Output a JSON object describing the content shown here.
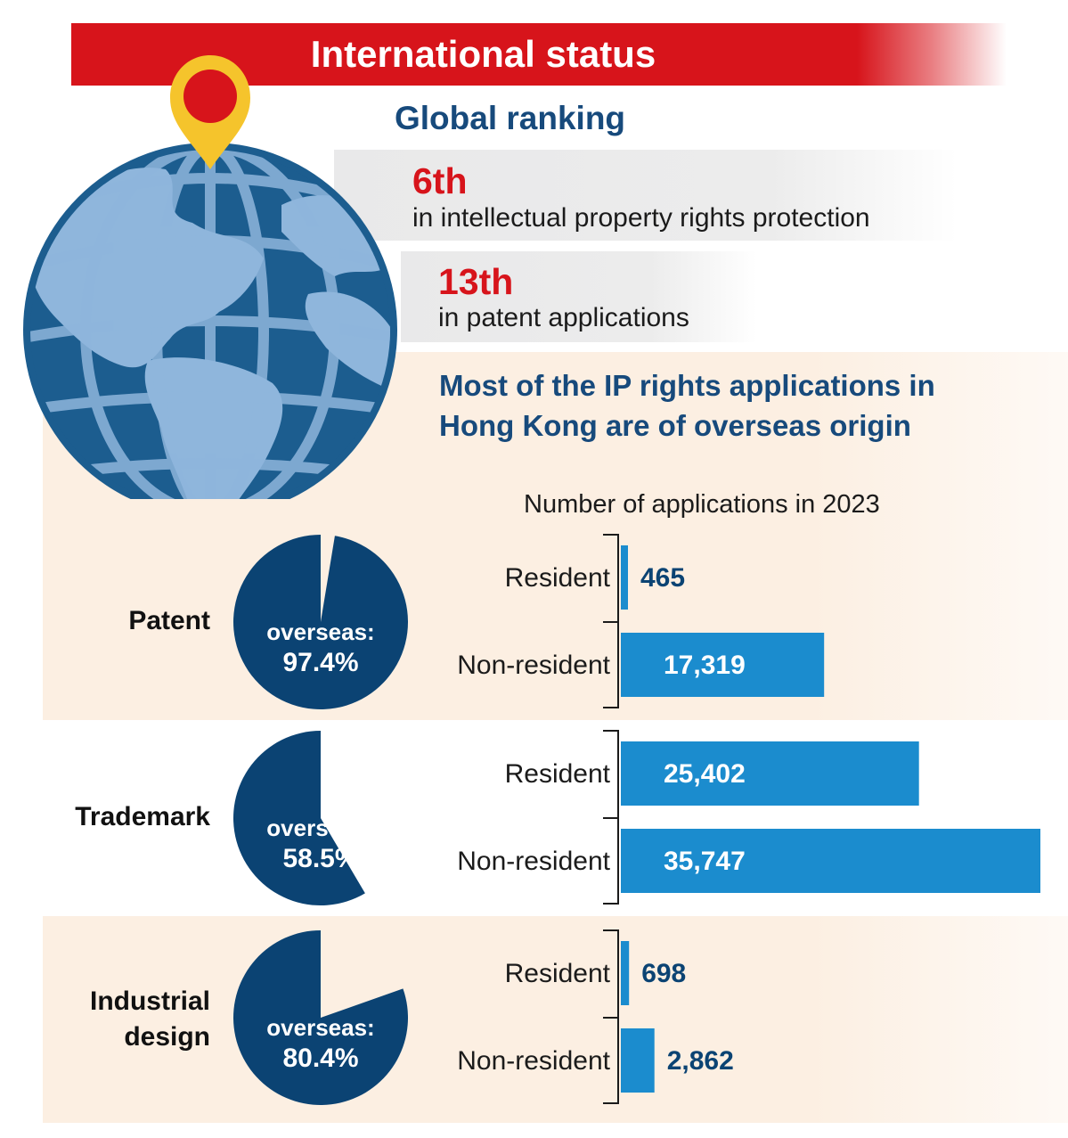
{
  "header": {
    "title": "International status"
  },
  "ranking": {
    "title": "Global ranking",
    "items": [
      {
        "rank": "6th",
        "description": "in intellectual property rights protection"
      },
      {
        "rank": "13th",
        "description": "in patent applications"
      }
    ]
  },
  "headline": "Most of the IP rights applications in Hong Kong are of overseas origin",
  "colors": {
    "red": "#d7141b",
    "navy": "#0b4373",
    "bar_blue": "#1b8cce",
    "beige": "#fcefe2",
    "globe_dark": "#1c5d8f",
    "globe_light": "#8fb6dc",
    "pin_yellow": "#f5c42c"
  },
  "chart_data": {
    "type": "bar",
    "orientation": "horizontal",
    "title": "Number of applications in 2023",
    "xlim": [
      0,
      35747
    ],
    "groups": [
      {
        "category": "Patent",
        "overseas_label": "overseas:",
        "overseas_share_text": "97.4%",
        "overseas_share": 97.4,
        "bars": [
          {
            "label": "Resident",
            "value": 465,
            "value_text": "465"
          },
          {
            "label": "Non-resident",
            "value": 17319,
            "value_text": "17,319"
          }
        ]
      },
      {
        "category": "Trademark",
        "overseas_label": "overseas:",
        "overseas_share_text": "58.5%",
        "overseas_share": 58.5,
        "bars": [
          {
            "label": "Resident",
            "value": 25402,
            "value_text": "25,402"
          },
          {
            "label": "Non-resident",
            "value": 35747,
            "value_text": "35,747"
          }
        ]
      },
      {
        "category": "Industrial design",
        "overseas_label": "overseas:",
        "overseas_share_text": "80.4%",
        "overseas_share": 80.4,
        "bars": [
          {
            "label": "Resident",
            "value": 698,
            "value_text": "698"
          },
          {
            "label": "Non-resident",
            "value": 2862,
            "value_text": "2,862"
          }
        ]
      }
    ]
  }
}
